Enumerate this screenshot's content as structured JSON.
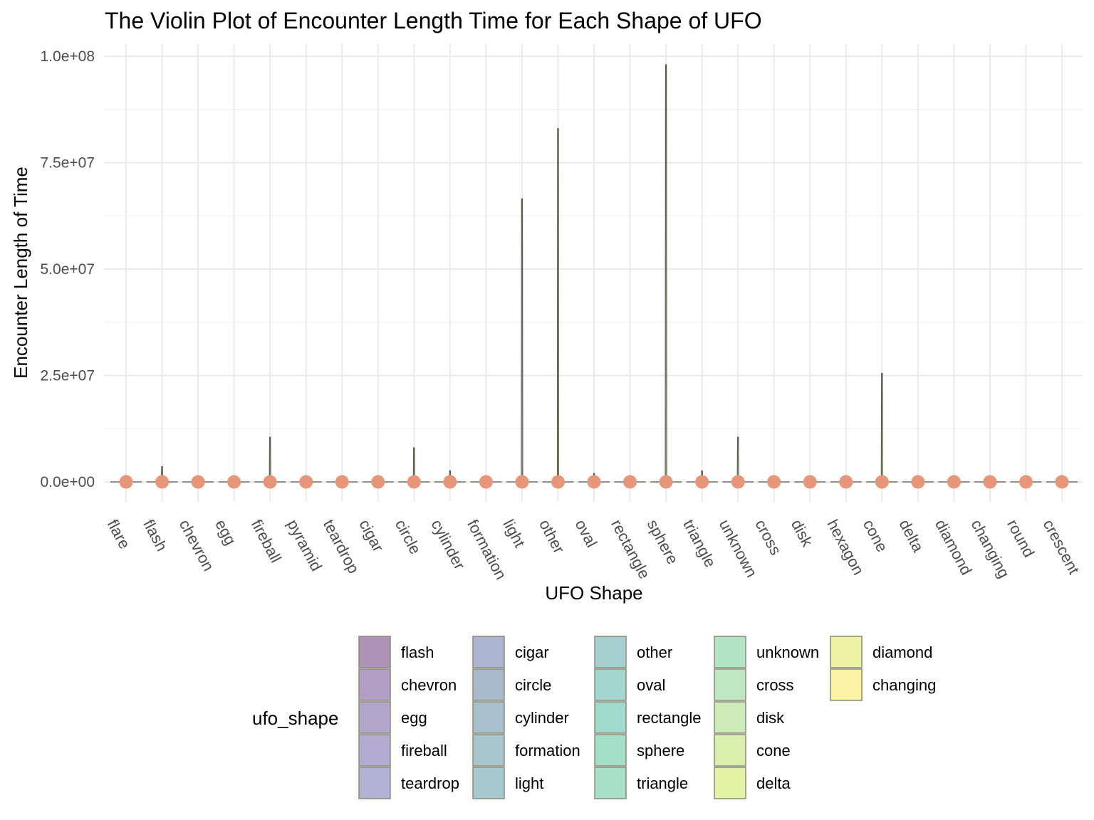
{
  "chart_data": {
    "type": "violin",
    "title": "The Violin Plot of Encounter Length Time for Each Shape of UFO",
    "xlabel": "UFO Shape",
    "ylabel": "Encounter Length of Time",
    "ylim": [
      0,
      100000000
    ],
    "y_ticks": [
      0,
      25000000,
      50000000,
      75000000,
      100000000
    ],
    "y_tick_labels": [
      "0.0e+00",
      "2.5e+07",
      "5.0e+07",
      "7.5e+07",
      "1.0e+08"
    ],
    "grid": true,
    "categories": [
      "flare",
      "flash",
      "chevron",
      "egg",
      "fireball",
      "pyramid",
      "teardrop",
      "cigar",
      "circle",
      "cylinder",
      "formation",
      "light",
      "other",
      "oval",
      "rectangle",
      "sphere",
      "triangle",
      "unknown",
      "cross",
      "disk",
      "hexagon",
      "cone",
      "delta",
      "diamond",
      "changing",
      "round",
      "crescent"
    ],
    "max_values": [
      0,
      3600000,
      0,
      0,
      10500000,
      0,
      0,
      1200000,
      8000000,
      2600000,
      0,
      66500000,
      83000000,
      2000000,
      0,
      98000000,
      2600000,
      10500000,
      0,
      0,
      0,
      25500000,
      0,
      0,
      0,
      0,
      0
    ],
    "median_values": [
      0,
      0,
      0,
      0,
      0,
      0,
      0,
      0,
      0,
      0,
      0,
      0,
      0,
      0,
      0,
      0,
      0,
      0,
      0,
      0,
      0,
      0,
      0,
      0,
      0,
      0,
      0
    ],
    "point_color": "#e8967a",
    "violin_outline_color": "#5a5a4a",
    "legend": {
      "title": "ufo_shape",
      "position": "bottom",
      "items": [
        {
          "label": "flash",
          "color": "#ae93b8"
        },
        {
          "label": "chevron",
          "color": "#b29ec5"
        },
        {
          "label": "egg",
          "color": "#b3a6cb"
        },
        {
          "label": "fireball",
          "color": "#b3abd0"
        },
        {
          "label": "teardrop",
          "color": "#b0b3d3"
        },
        {
          "label": "cigar",
          "color": "#acb5d0"
        },
        {
          "label": "circle",
          "color": "#a9bacd"
        },
        {
          "label": "cylinder",
          "color": "#a8c1cc"
        },
        {
          "label": "formation",
          "color": "#a8c6cd"
        },
        {
          "label": "light",
          "color": "#a7cad0"
        },
        {
          "label": "other",
          "color": "#a6cfcf"
        },
        {
          "label": "oval",
          "color": "#a2d6cf"
        },
        {
          "label": "rectangle",
          "color": "#a1dbcc"
        },
        {
          "label": "sphere",
          "color": "#a3dfc8"
        },
        {
          "label": "triangle",
          "color": "#a8e2c6"
        },
        {
          "label": "unknown",
          "color": "#b2e5c6"
        },
        {
          "label": "cross",
          "color": "#bfe8c2"
        },
        {
          "label": "disk",
          "color": "#ccebb8"
        },
        {
          "label": "cone",
          "color": "#d9efae"
        },
        {
          "label": "delta",
          "color": "#e4f2a5"
        },
        {
          "label": "diamond",
          "color": "#eef3a3"
        },
        {
          "label": "changing",
          "color": "#fcf3a5"
        }
      ]
    }
  }
}
